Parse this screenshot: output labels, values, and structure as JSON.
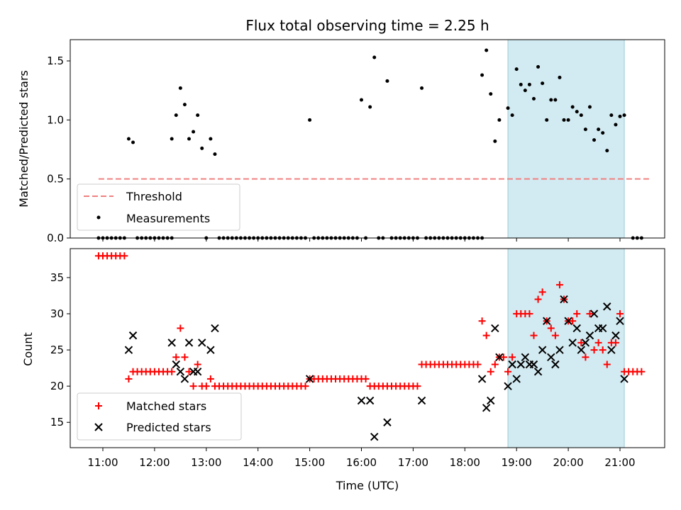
{
  "chart_data": {
    "title": "Flux total observing time = 2.25 h",
    "xlabel": "Time (UTC)",
    "x_ticks": [
      "11:00",
      "12:00",
      "13:00",
      "14:00",
      "15:00",
      "16:00",
      "17:00",
      "18:00",
      "19:00",
      "20:00",
      "21:00"
    ],
    "highlight_span": [
      "18:50",
      "21:05"
    ],
    "colors": {
      "threshold": "#f08080",
      "matched": "#ff0000",
      "predicted": "#000000",
      "span": "#add8e6"
    },
    "top": {
      "type": "scatter",
      "ylabel": "Matched/Predicted stars",
      "ylim": [
        0,
        1.68
      ],
      "y_ticks": [
        0.0,
        0.5,
        1.0,
        1.5
      ],
      "legend": [
        "Threshold",
        "Measurements"
      ],
      "legend_position": "lower-left",
      "threshold": {
        "x": [
          "10:55",
          "21:35"
        ],
        "y": 0.5
      },
      "points": [
        [
          "10:55",
          0
        ],
        [
          "11:00",
          0
        ],
        [
          "11:05",
          0
        ],
        [
          "11:10",
          0
        ],
        [
          "11:15",
          0
        ],
        [
          "11:20",
          0
        ],
        [
          "11:25",
          0
        ],
        [
          "11:30",
          0.84
        ],
        [
          "11:35",
          0.81
        ],
        [
          "11:40",
          0
        ],
        [
          "11:45",
          0
        ],
        [
          "11:50",
          0
        ],
        [
          "11:55",
          0
        ],
        [
          "12:00",
          0
        ],
        [
          "12:05",
          0
        ],
        [
          "12:10",
          0
        ],
        [
          "12:15",
          0
        ],
        [
          "12:20",
          0
        ],
        [
          "12:20",
          0.84
        ],
        [
          "12:25",
          1.04
        ],
        [
          "12:30",
          1.27
        ],
        [
          "12:35",
          1.13
        ],
        [
          "12:40",
          0.84
        ],
        [
          "12:45",
          0.9
        ],
        [
          "12:50",
          1.04
        ],
        [
          "12:55",
          0.76
        ],
        [
          "13:00",
          0
        ],
        [
          "13:05",
          0.84
        ],
        [
          "13:10",
          0.71
        ],
        [
          "13:15",
          0
        ],
        [
          "13:20",
          0
        ],
        [
          "13:25",
          0
        ],
        [
          "13:30",
          0
        ],
        [
          "13:35",
          0
        ],
        [
          "13:40",
          0
        ],
        [
          "13:45",
          0
        ],
        [
          "13:50",
          0
        ],
        [
          "13:55",
          0
        ],
        [
          "14:00",
          0
        ],
        [
          "14:05",
          0
        ],
        [
          "14:10",
          0
        ],
        [
          "14:15",
          0
        ],
        [
          "14:20",
          0
        ],
        [
          "14:25",
          0
        ],
        [
          "14:30",
          0
        ],
        [
          "14:35",
          0
        ],
        [
          "14:40",
          0
        ],
        [
          "14:45",
          0
        ],
        [
          "14:50",
          0
        ],
        [
          "14:55",
          0
        ],
        [
          "15:00",
          1.0
        ],
        [
          "15:05",
          0
        ],
        [
          "15:10",
          0
        ],
        [
          "15:15",
          0
        ],
        [
          "15:20",
          0
        ],
        [
          "15:25",
          0
        ],
        [
          "15:30",
          0
        ],
        [
          "15:35",
          0
        ],
        [
          "15:40",
          0
        ],
        [
          "15:45",
          0
        ],
        [
          "15:50",
          0
        ],
        [
          "15:55",
          0
        ],
        [
          "16:00",
          1.17
        ],
        [
          "16:05",
          0
        ],
        [
          "16:10",
          1.11
        ],
        [
          "16:15",
          1.53
        ],
        [
          "16:20",
          0
        ],
        [
          "16:25",
          0
        ],
        [
          "16:30",
          1.33
        ],
        [
          "16:35",
          0
        ],
        [
          "16:40",
          0
        ],
        [
          "16:45",
          0
        ],
        [
          "16:50",
          0
        ],
        [
          "16:55",
          0
        ],
        [
          "17:00",
          0
        ],
        [
          "17:05",
          0
        ],
        [
          "17:10",
          1.27
        ],
        [
          "17:15",
          0
        ],
        [
          "17:20",
          0
        ],
        [
          "17:25",
          0
        ],
        [
          "17:30",
          0
        ],
        [
          "17:35",
          0
        ],
        [
          "17:40",
          0
        ],
        [
          "17:45",
          0
        ],
        [
          "17:50",
          0
        ],
        [
          "17:55",
          0
        ],
        [
          "18:00",
          0
        ],
        [
          "18:05",
          0
        ],
        [
          "18:10",
          0
        ],
        [
          "18:15",
          0
        ],
        [
          "18:20",
          0
        ],
        [
          "18:20",
          1.38
        ],
        [
          "18:25",
          1.59
        ],
        [
          "18:30",
          1.22
        ],
        [
          "18:35",
          0.82
        ],
        [
          "18:40",
          1.0
        ],
        [
          "18:50",
          1.1
        ],
        [
          "18:55",
          1.04
        ],
        [
          "19:00",
          1.43
        ],
        [
          "19:05",
          1.3
        ],
        [
          "19:10",
          1.25
        ],
        [
          "19:15",
          1.3
        ],
        [
          "19:20",
          1.18
        ],
        [
          "19:25",
          1.45
        ],
        [
          "19:30",
          1.31
        ],
        [
          "19:35",
          1.0
        ],
        [
          "19:40",
          1.17
        ],
        [
          "19:45",
          1.17
        ],
        [
          "19:50",
          1.36
        ],
        [
          "19:55",
          1.0
        ],
        [
          "20:00",
          1.0
        ],
        [
          "20:05",
          1.11
        ],
        [
          "20:10",
          1.07
        ],
        [
          "20:15",
          1.04
        ],
        [
          "20:20",
          0.92
        ],
        [
          "20:25",
          1.11
        ],
        [
          "20:30",
          0.83
        ],
        [
          "20:35",
          0.92
        ],
        [
          "20:40",
          0.89
        ],
        [
          "20:45",
          0.74
        ],
        [
          "20:50",
          1.04
        ],
        [
          "20:55",
          0.96
        ],
        [
          "21:00",
          1.03
        ],
        [
          "21:05",
          1.04
        ],
        [
          "21:15",
          0
        ],
        [
          "21:20",
          0
        ],
        [
          "21:25",
          0
        ]
      ]
    },
    "bottom": {
      "type": "scatter",
      "ylabel": "Count",
      "ylim": [
        11.5,
        39
      ],
      "y_ticks": [
        15,
        20,
        25,
        30,
        35
      ],
      "legend": [
        "Matched stars",
        "Predicted stars"
      ],
      "legend_position": "lower-left",
      "matched": [
        [
          "10:55",
          38
        ],
        [
          "11:00",
          38
        ],
        [
          "11:05",
          38
        ],
        [
          "11:10",
          38
        ],
        [
          "11:15",
          38
        ],
        [
          "11:20",
          38
        ],
        [
          "11:25",
          38
        ],
        [
          "11:30",
          21
        ],
        [
          "11:35",
          22
        ],
        [
          "11:40",
          22
        ],
        [
          "11:45",
          22
        ],
        [
          "11:50",
          22
        ],
        [
          "11:55",
          22
        ],
        [
          "12:00",
          22
        ],
        [
          "12:05",
          22
        ],
        [
          "12:10",
          22
        ],
        [
          "12:15",
          22
        ],
        [
          "12:20",
          22
        ],
        [
          "12:25",
          24
        ],
        [
          "12:30",
          28
        ],
        [
          "12:35",
          24
        ],
        [
          "12:40",
          22
        ],
        [
          "12:45",
          20
        ],
        [
          "12:50",
          23
        ],
        [
          "12:55",
          20
        ],
        [
          "13:00",
          20
        ],
        [
          "13:05",
          21
        ],
        [
          "13:10",
          20
        ],
        [
          "13:15",
          20
        ],
        [
          "13:20",
          20
        ],
        [
          "13:25",
          20
        ],
        [
          "13:30",
          20
        ],
        [
          "13:35",
          20
        ],
        [
          "13:40",
          20
        ],
        [
          "13:45",
          20
        ],
        [
          "13:50",
          20
        ],
        [
          "13:55",
          20
        ],
        [
          "14:00",
          20
        ],
        [
          "14:05",
          20
        ],
        [
          "14:10",
          20
        ],
        [
          "14:15",
          20
        ],
        [
          "14:20",
          20
        ],
        [
          "14:25",
          20
        ],
        [
          "14:30",
          20
        ],
        [
          "14:35",
          20
        ],
        [
          "14:40",
          20
        ],
        [
          "14:45",
          20
        ],
        [
          "14:50",
          20
        ],
        [
          "14:55",
          20
        ],
        [
          "15:00",
          21
        ],
        [
          "15:05",
          21
        ],
        [
          "15:10",
          21
        ],
        [
          "15:15",
          21
        ],
        [
          "15:20",
          21
        ],
        [
          "15:25",
          21
        ],
        [
          "15:30",
          21
        ],
        [
          "15:35",
          21
        ],
        [
          "15:40",
          21
        ],
        [
          "15:45",
          21
        ],
        [
          "15:50",
          21
        ],
        [
          "15:55",
          21
        ],
        [
          "16:00",
          21
        ],
        [
          "16:05",
          21
        ],
        [
          "16:10",
          20
        ],
        [
          "16:15",
          20
        ],
        [
          "16:20",
          20
        ],
        [
          "16:25",
          20
        ],
        [
          "16:30",
          20
        ],
        [
          "16:35",
          20
        ],
        [
          "16:40",
          20
        ],
        [
          "16:45",
          20
        ],
        [
          "16:50",
          20
        ],
        [
          "16:55",
          20
        ],
        [
          "17:00",
          20
        ],
        [
          "17:05",
          20
        ],
        [
          "17:10",
          23
        ],
        [
          "17:15",
          23
        ],
        [
          "17:20",
          23
        ],
        [
          "17:25",
          23
        ],
        [
          "17:30",
          23
        ],
        [
          "17:35",
          23
        ],
        [
          "17:40",
          23
        ],
        [
          "17:45",
          23
        ],
        [
          "17:50",
          23
        ],
        [
          "17:55",
          23
        ],
        [
          "18:00",
          23
        ],
        [
          "18:05",
          23
        ],
        [
          "18:10",
          23
        ],
        [
          "18:15",
          23
        ],
        [
          "18:20",
          29
        ],
        [
          "18:25",
          27
        ],
        [
          "18:30",
          22
        ],
        [
          "18:35",
          23
        ],
        [
          "18:40",
          24
        ],
        [
          "18:45",
          24
        ],
        [
          "18:50",
          22
        ],
        [
          "18:55",
          24
        ],
        [
          "19:00",
          30
        ],
        [
          "19:05",
          30
        ],
        [
          "19:10",
          30
        ],
        [
          "19:15",
          30
        ],
        [
          "19:20",
          27
        ],
        [
          "19:25",
          32
        ],
        [
          "19:30",
          33
        ],
        [
          "19:35",
          29
        ],
        [
          "19:40",
          28
        ],
        [
          "19:45",
          27
        ],
        [
          "19:50",
          34
        ],
        [
          "19:55",
          32
        ],
        [
          "20:00",
          29
        ],
        [
          "20:05",
          29
        ],
        [
          "20:10",
          30
        ],
        [
          "20:15",
          26
        ],
        [
          "20:20",
          24
        ],
        [
          "20:25",
          30
        ],
        [
          "20:30",
          25
        ],
        [
          "20:35",
          26
        ],
        [
          "20:40",
          25
        ],
        [
          "20:45",
          23
        ],
        [
          "20:50",
          26
        ],
        [
          "20:55",
          26
        ],
        [
          "21:00",
          30
        ],
        [
          "21:05",
          22
        ],
        [
          "21:10",
          22
        ],
        [
          "21:15",
          22
        ],
        [
          "21:20",
          22
        ],
        [
          "21:25",
          22
        ]
      ],
      "predicted": [
        [
          "11:30",
          25
        ],
        [
          "11:35",
          27
        ],
        [
          "12:20",
          26
        ],
        [
          "12:25",
          23
        ],
        [
          "12:30",
          22
        ],
        [
          "12:35",
          21
        ],
        [
          "12:40",
          26
        ],
        [
          "12:45",
          22
        ],
        [
          "12:50",
          22
        ],
        [
          "12:55",
          26
        ],
        [
          "13:05",
          25
        ],
        [
          "13:10",
          28
        ],
        [
          "15:00",
          21
        ],
        [
          "16:00",
          18
        ],
        [
          "16:10",
          18
        ],
        [
          "16:15",
          13
        ],
        [
          "16:30",
          15
        ],
        [
          "17:10",
          18
        ],
        [
          "18:20",
          21
        ],
        [
          "18:25",
          17
        ],
        [
          "18:30",
          18
        ],
        [
          "18:35",
          28
        ],
        [
          "18:40",
          24
        ],
        [
          "18:50",
          20
        ],
        [
          "18:55",
          23
        ],
        [
          "19:00",
          21
        ],
        [
          "19:05",
          23
        ],
        [
          "19:10",
          24
        ],
        [
          "19:15",
          23
        ],
        [
          "19:20",
          23
        ],
        [
          "19:25",
          22
        ],
        [
          "19:30",
          25
        ],
        [
          "19:35",
          29
        ],
        [
          "19:40",
          24
        ],
        [
          "19:45",
          23
        ],
        [
          "19:50",
          25
        ],
        [
          "19:55",
          32
        ],
        [
          "20:00",
          29
        ],
        [
          "20:05",
          26
        ],
        [
          "20:10",
          28
        ],
        [
          "20:15",
          25
        ],
        [
          "20:20",
          26
        ],
        [
          "20:25",
          27
        ],
        [
          "20:30",
          30
        ],
        [
          "20:35",
          28
        ],
        [
          "20:40",
          28
        ],
        [
          "20:45",
          31
        ],
        [
          "20:50",
          25
        ],
        [
          "20:55",
          27
        ],
        [
          "21:00",
          29
        ],
        [
          "21:05",
          21
        ]
      ]
    }
  }
}
